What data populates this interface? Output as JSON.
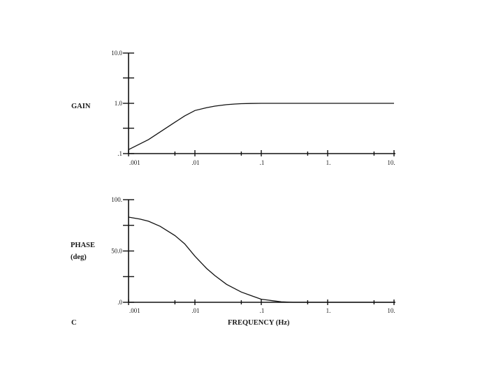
{
  "panel_label": "C",
  "chart_data": [
    {
      "type": "line",
      "title": "",
      "ylabel": "GAIN",
      "xlabel": "",
      "x_scale": "log",
      "y_scale": "log",
      "xlim": [
        0.001,
        10
      ],
      "ylim": [
        0.1,
        10
      ],
      "x_tick_labels": [
        ".001",
        ".01",
        ".1",
        "1.",
        "10."
      ],
      "y_tick_labels": [
        ".1",
        "1.0",
        "10.0"
      ],
      "series": [
        {
          "x": [
            0.001,
            0.002,
            0.003,
            0.005,
            0.007,
            0.01,
            0.015,
            0.02,
            0.03,
            0.04,
            0.05,
            0.07,
            0.1,
            0.2,
            0.5,
            1,
            2,
            5,
            10
          ],
          "y": [
            0.12,
            0.19,
            0.27,
            0.42,
            0.56,
            0.72,
            0.82,
            0.88,
            0.94,
            0.97,
            0.985,
            0.995,
            1.0,
            1.0,
            1.0,
            1.0,
            1.0,
            1.0,
            1.0
          ]
        }
      ]
    },
    {
      "type": "line",
      "title": "",
      "ylabel": "PHASE",
      "ylabel2": "(deg)",
      "xlabel": "FREQUENCY (Hz)",
      "x_scale": "log",
      "y_scale": "linear",
      "xlim": [
        0.001,
        10
      ],
      "ylim": [
        0,
        100
      ],
      "x_tick_labels": [
        ".001",
        ".01",
        ".1",
        "1.",
        "10."
      ],
      "y_tick_labels": [
        ".0",
        "50.0",
        "100."
      ],
      "series": [
        {
          "x": [
            0.001,
            0.0015,
            0.002,
            0.003,
            0.005,
            0.007,
            0.01,
            0.015,
            0.02,
            0.03,
            0.05,
            0.07,
            0.1,
            0.15,
            0.2,
            0.3,
            0.5,
            1,
            10
          ],
          "y": [
            83,
            81,
            79,
            74,
            65,
            57,
            45,
            33,
            26,
            17.5,
            10,
            6.5,
            3,
            1.5,
            0.5,
            0,
            0,
            0,
            0
          ]
        }
      ]
    }
  ]
}
